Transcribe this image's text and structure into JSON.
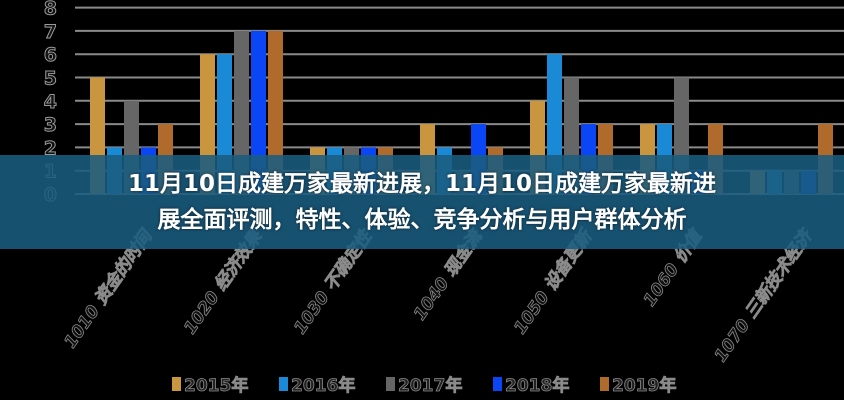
{
  "title": {
    "line1": "11月10日成建万家最新进展，11月10日成建万家最新进",
    "line2": "展全面评测，特性、体验、竞争分析与用户群体分析"
  },
  "chart_data": {
    "type": "bar",
    "ylim": [
      0,
      8
    ],
    "yticks": [
      "0",
      "1",
      "2",
      "3",
      "4",
      "5",
      "6",
      "7",
      "8"
    ],
    "grid": true,
    "legend_placement": "bottom",
    "categories": [
      "1010 资金的时间",
      "1020 经济效果",
      "1030 不确定性",
      "1040 现金流",
      "1050 设备更新",
      "1060 价值",
      "1070 三新技术经济"
    ],
    "series": [
      {
        "name": "2015年",
        "color": "#c9963f",
        "values": [
          5,
          6,
          2,
          3,
          4,
          3,
          1
        ]
      },
      {
        "name": "2016年",
        "color": "#1b8ad6",
        "values": [
          2,
          6,
          2,
          2,
          6,
          3,
          1
        ]
      },
      {
        "name": "2017年",
        "color": "#666666",
        "values": [
          4,
          7,
          2,
          1,
          5,
          5,
          1
        ]
      },
      {
        "name": "2018年",
        "color": "#0a46f5",
        "values": [
          2,
          7,
          2,
          3,
          3,
          1,
          1
        ]
      },
      {
        "name": "2019年",
        "color": "#b06a2c",
        "values": [
          3,
          7,
          2,
          2,
          3,
          3,
          3
        ]
      }
    ]
  }
}
